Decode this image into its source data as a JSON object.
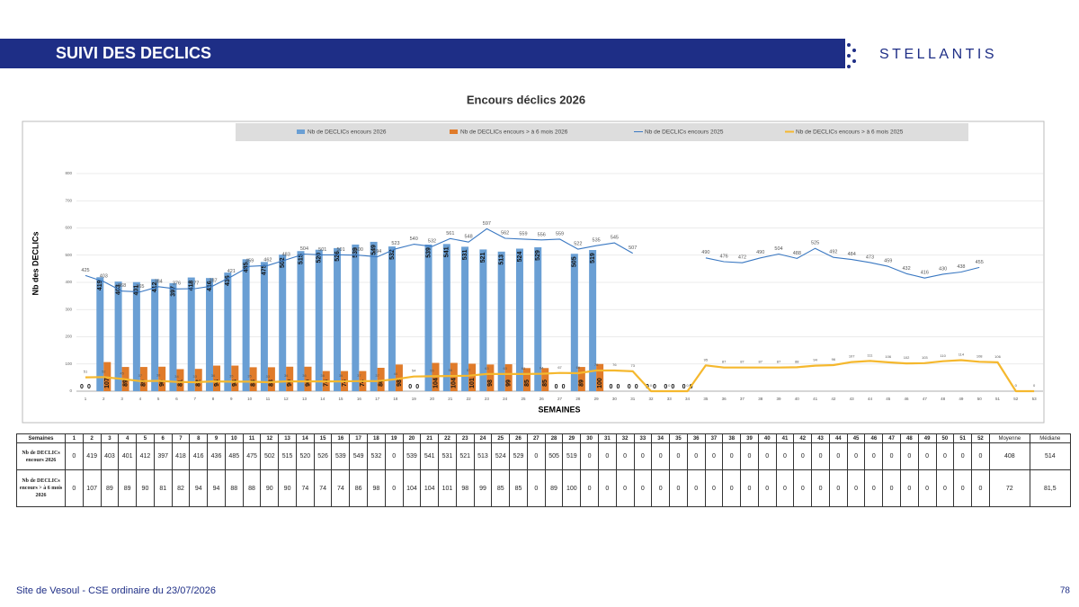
{
  "header": {
    "title": "SUIVI DES DECLICS",
    "logo": "STELLANTIS"
  },
  "chart_data": {
    "type": "bar",
    "title": "Encours déclics 2026",
    "x_label": "SEMAINES",
    "y_label": "Nb des DECLICs",
    "categories": [
      1,
      2,
      3,
      4,
      5,
      6,
      7,
      8,
      9,
      10,
      11,
      12,
      13,
      14,
      15,
      16,
      17,
      18,
      19,
      20,
      21,
      22,
      23,
      24,
      25,
      26,
      27,
      28,
      29,
      30,
      31,
      32,
      33,
      34,
      35,
      36,
      37,
      38,
      39,
      40,
      41,
      42,
      43,
      44,
      45,
      46,
      47,
      48,
      49,
      50,
      51,
      52,
      53
    ],
    "ylim": [
      0,
      800
    ],
    "yticks": [
      0,
      100,
      200,
      300,
      400,
      500,
      600,
      700,
      800
    ],
    "grid": true,
    "series": [
      {
        "name": "Nb de DECLICs encours 2026",
        "type": "bar",
        "color": "#6a9fd4",
        "values": [
          0,
          419,
          403,
          401,
          412,
          397,
          418,
          416,
          436,
          485,
          475,
          502,
          515,
          520,
          526,
          539,
          549,
          532,
          0,
          539,
          541,
          531,
          521,
          513,
          524,
          529,
          0,
          505,
          519,
          0,
          0,
          0,
          0,
          0,
          null,
          null,
          null,
          null,
          null,
          null,
          null,
          null,
          null,
          null,
          null,
          null,
          null,
          null,
          null,
          null,
          null,
          null,
          null
        ]
      },
      {
        "name": "Nb de DECLICs encours > à 6 mois 2026",
        "type": "bar",
        "color": "#e07b2a",
        "values": [
          0,
          107,
          89,
          89,
          90,
          81,
          82,
          94,
          94,
          88,
          88,
          90,
          90,
          74,
          74,
          74,
          86,
          98,
          0,
          104,
          104,
          101,
          98,
          99,
          85,
          85,
          0,
          89,
          100,
          0,
          0,
          0,
          0,
          0,
          null,
          null,
          null,
          null,
          null,
          null,
          null,
          null,
          null,
          null,
          null,
          null,
          null,
          null,
          null,
          null,
          null,
          null,
          null
        ]
      },
      {
        "name": "Nb de DECLICs encours 2025",
        "type": "line",
        "color": "#3a78c2",
        "values": [
          425,
          403,
          368,
          365,
          384,
          376,
          377,
          387,
          421,
          459,
          462,
          483,
          504,
          501,
          501,
          500,
          494,
          523,
          540,
          532,
          561,
          548,
          597,
          562,
          559,
          556,
          559,
          522,
          535,
          545,
          507,
          null,
          null,
          null,
          490,
          476,
          472,
          490,
          504,
          488,
          525,
          492,
          484,
          473,
          459,
          432,
          416,
          430,
          438,
          455,
          null,
          null,
          null
        ]
      },
      {
        "name": "Nb de DECLICs encours > à 6 mois 2025",
        "type": "line",
        "color": "#f5b82e",
        "values": [
          51,
          52,
          45,
          37,
          38,
          34,
          33,
          36,
          35,
          35,
          33,
          36,
          36,
          36,
          36,
          37,
          37,
          44,
          54,
          55,
          56,
          57,
          63,
          63,
          63,
          64,
          67,
          66,
          76,
          76,
          73,
          0,
          0,
          0,
          95,
          87,
          87,
          87,
          87,
          88,
          94,
          96,
          107,
          111,
          106,
          102,
          103,
          110,
          114,
          108,
          106,
          0,
          0
        ]
      }
    ]
  },
  "table": {
    "header": [
      "Semaines",
      1,
      2,
      3,
      4,
      5,
      6,
      7,
      8,
      9,
      10,
      11,
      12,
      13,
      14,
      15,
      16,
      17,
      18,
      19,
      20,
      21,
      22,
      23,
      24,
      25,
      26,
      27,
      28,
      29,
      30,
      31,
      32,
      33,
      34,
      35,
      36,
      37,
      38,
      39,
      40,
      41,
      42,
      43,
      44,
      45,
      46,
      47,
      48,
      49,
      50,
      51,
      52,
      "Moyenne",
      "Médiane"
    ],
    "rows": [
      [
        "Nb de DECLICs encours 2026",
        0,
        419,
        403,
        401,
        412,
        397,
        418,
        416,
        436,
        485,
        475,
        502,
        515,
        520,
        526,
        539,
        549,
        532,
        0,
        539,
        541,
        531,
        521,
        513,
        524,
        529,
        0,
        505,
        519,
        0,
        0,
        0,
        0,
        0,
        0,
        0,
        0,
        0,
        0,
        0,
        0,
        0,
        0,
        0,
        0,
        0,
        0,
        0,
        0,
        0,
        0,
        0,
        408,
        514
      ],
      [
        "Nb de DECLICs encours > à 6 mois 2026",
        0,
        107,
        89,
        89,
        90,
        81,
        82,
        94,
        94,
        88,
        88,
        90,
        90,
        74,
        74,
        74,
        86,
        98,
        0,
        104,
        104,
        101,
        98,
        99,
        85,
        85,
        0,
        89,
        100,
        0,
        0,
        0,
        0,
        0,
        0,
        0,
        0,
        0,
        0,
        0,
        0,
        0,
        0,
        0,
        0,
        0,
        0,
        0,
        0,
        0,
        0,
        0,
        72,
        "81,5"
      ]
    ]
  },
  "footer": {
    "left": "Site de Vesoul - CSE ordinaire du 23/07/2026",
    "page": "78"
  }
}
